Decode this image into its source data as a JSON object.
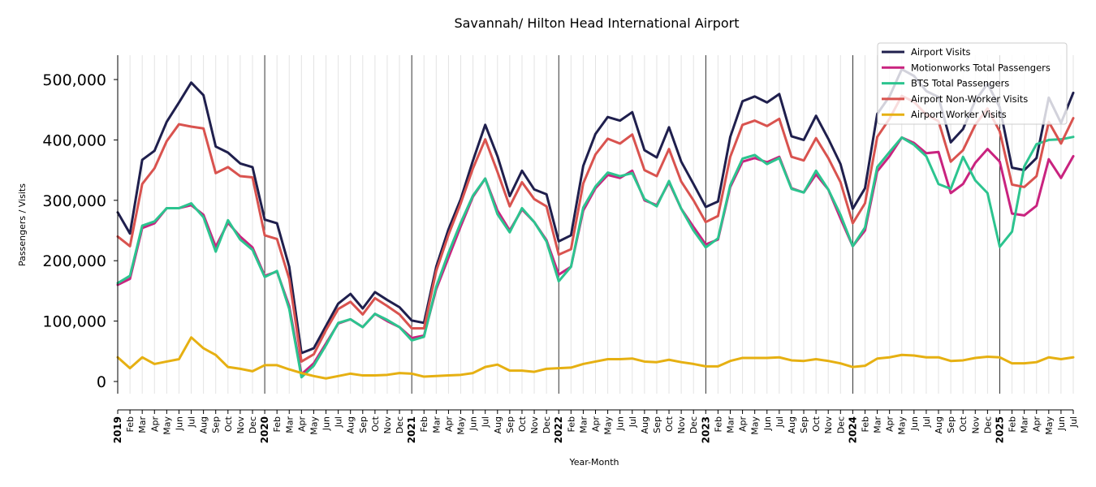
{
  "chart_data": {
    "type": "line",
    "title": "Savannah/ Hilton Head International Airport",
    "xlabel": "Year-Month",
    "ylabel": "Passengers / Visits",
    "ylim": [
      -20000,
      540000
    ],
    "y_ticks": [
      0,
      100000,
      200000,
      300000,
      400000,
      500000
    ],
    "y_tick_labels": [
      "0",
      "100,000",
      "200,000",
      "300,000",
      "400,000",
      "500,000"
    ],
    "grid": "vertical monthly gridlines, dark lines at year boundaries",
    "legend_position": "top-right",
    "categories": [
      "2019",
      "Feb",
      "Mar",
      "Apr",
      "May",
      "Jun",
      "Jul",
      "Aug",
      "Sep",
      "Oct",
      "Nov",
      "Dec",
      "2020",
      "Feb",
      "Mar",
      "Apr",
      "May",
      "Jun",
      "Jul",
      "Aug",
      "Sep",
      "Oct",
      "Nov",
      "Dec",
      "2021",
      "Feb",
      "Mar",
      "Apr",
      "May",
      "Jun",
      "Jul",
      "Aug",
      "Sep",
      "Oct",
      "Nov",
      "Dec",
      "2022",
      "Feb",
      "Mar",
      "Apr",
      "May",
      "Jun",
      "Jul",
      "Aug",
      "Sep",
      "Oct",
      "Nov",
      "Dec",
      "2023",
      "Feb",
      "Mar",
      "Apr",
      "May",
      "Jun",
      "Jul",
      "Aug",
      "Sep",
      "Oct",
      "Nov",
      "Dec",
      "2024",
      "Feb",
      "Mar",
      "Apr",
      "May",
      "Jun",
      "Jul",
      "Aug",
      "Sep",
      "Oct",
      "Nov",
      "Dec",
      "2025",
      "Feb",
      "Mar",
      "Apr",
      "May",
      "Jun",
      "Jul"
    ],
    "year_labels": [
      "2019",
      "2020",
      "2021",
      "2022",
      "2023",
      "2024",
      "2025"
    ],
    "series": [
      {
        "name": "Airport Visits",
        "color": "#1f1f4d",
        "values": [
          280000,
          245000,
          367000,
          382000,
          430000,
          462000,
          495000,
          474000,
          389000,
          379000,
          361000,
          355000,
          268000,
          262000,
          190000,
          47000,
          55000,
          92000,
          129000,
          145000,
          121000,
          148000,
          135000,
          123000,
          101000,
          97000,
          190000,
          252000,
          302000,
          366000,
          425000,
          373000,
          307000,
          349000,
          318000,
          310000,
          232000,
          242000,
          357000,
          410000,
          438000,
          432000,
          446000,
          383000,
          371000,
          421000,
          364000,
          327000,
          289000,
          298000,
          405000,
          464000,
          472000,
          462000,
          476000,
          406000,
          400000,
          440000,
          402000,
          360000,
          286000,
          320000,
          443000,
          472000,
          517000,
          506000,
          481000,
          471000,
          396000,
          418000,
          465000,
          493000,
          454000,
          354000,
          350000,
          370000,
          470000,
          428000,
          478000
        ]
      },
      {
        "name": "Motionworks Total Passengers",
        "color": "#c9237f",
        "values": [
          160000,
          170000,
          254000,
          262000,
          287000,
          287000,
          292000,
          276000,
          223000,
          263000,
          240000,
          222000,
          175000,
          182000,
          125000,
          12000,
          30000,
          63000,
          96000,
          103000,
          90000,
          112000,
          100000,
          90000,
          72000,
          76000,
          153000,
          205000,
          257000,
          306000,
          336000,
          283000,
          250000,
          285000,
          264000,
          234000,
          177000,
          190000,
          283000,
          320000,
          342000,
          337000,
          349000,
          300000,
          292000,
          330000,
          286000,
          256000,
          227000,
          235000,
          322000,
          364000,
          370000,
          363000,
          372000,
          320000,
          313000,
          343000,
          318000,
          270000,
          224000,
          250000,
          348000,
          373000,
          404000,
          395000,
          378000,
          380000,
          312000,
          327000,
          362000,
          385000,
          364000,
          278000,
          275000,
          291000,
          368000,
          337000,
          373000
        ]
      },
      {
        "name": "BTS Total Passengers",
        "color": "#2cc48f",
        "values": [
          163000,
          175000,
          258000,
          265000,
          287000,
          287000,
          295000,
          272000,
          215000,
          267000,
          235000,
          218000,
          173000,
          183000,
          120000,
          7000,
          26000,
          60000,
          97000,
          103000,
          90000,
          112000,
          102000,
          90000,
          68000,
          74000,
          157000,
          213000,
          263000,
          308000,
          336000,
          277000,
          247000,
          287000,
          264000,
          232000,
          166000,
          190000,
          288000,
          323000,
          346000,
          340000,
          345000,
          302000,
          290000,
          332000,
          286000,
          250000,
          222000,
          237000,
          325000,
          369000,
          375000,
          360000,
          370000,
          319000,
          313000,
          349000,
          318000,
          276000,
          224000,
          255000,
          355000,
          380000,
          404000,
          392000,
          373000,
          327000,
          319000,
          372000,
          333000,
          312000,
          223000,
          248000,
          356000,
          393000,
          400000,
          401000,
          405000
        ]
      },
      {
        "name": "Airport Non-Worker Visits",
        "color": "#d9534f",
        "values": [
          240000,
          224000,
          327000,
          353000,
          398000,
          426000,
          422000,
          419000,
          345000,
          355000,
          340000,
          338000,
          242000,
          236000,
          170000,
          33000,
          45000,
          85000,
          120000,
          132000,
          111000,
          138000,
          125000,
          111000,
          88000,
          88000,
          183000,
          243000,
          295000,
          353000,
          401000,
          347000,
          290000,
          330000,
          302000,
          290000,
          210000,
          219000,
          328000,
          376000,
          402000,
          394000,
          409000,
          350000,
          340000,
          385000,
          331000,
          300000,
          264000,
          274000,
          372000,
          425000,
          432000,
          423000,
          435000,
          372000,
          366000,
          403000,
          370000,
          330000,
          262000,
          295000,
          405000,
          435000,
          473000,
          463000,
          442000,
          431000,
          364000,
          383000,
          425000,
          452000,
          414000,
          326000,
          322000,
          340000,
          430000,
          394000,
          436000
        ]
      },
      {
        "name": "Airport Worker Visits",
        "color": "#e6b012",
        "values": [
          40000,
          22000,
          40000,
          29000,
          33000,
          37000,
          73000,
          55000,
          44000,
          24000,
          21000,
          17000,
          27000,
          27000,
          20000,
          14000,
          9000,
          5000,
          9000,
          13000,
          10000,
          10000,
          11000,
          14000,
          13000,
          8000,
          9000,
          10000,
          11000,
          14000,
          24000,
          28000,
          18000,
          18000,
          16000,
          21000,
          22000,
          23000,
          29000,
          33000,
          37000,
          37000,
          38000,
          33000,
          32000,
          36000,
          32000,
          29000,
          25000,
          25000,
          34000,
          39000,
          39000,
          39000,
          40000,
          35000,
          34000,
          37000,
          34000,
          30000,
          24000,
          26000,
          38000,
          40000,
          44000,
          43000,
          40000,
          40000,
          34000,
          35000,
          39000,
          41000,
          40000,
          30000,
          30000,
          32000,
          40000,
          37000,
          40000
        ]
      }
    ]
  }
}
